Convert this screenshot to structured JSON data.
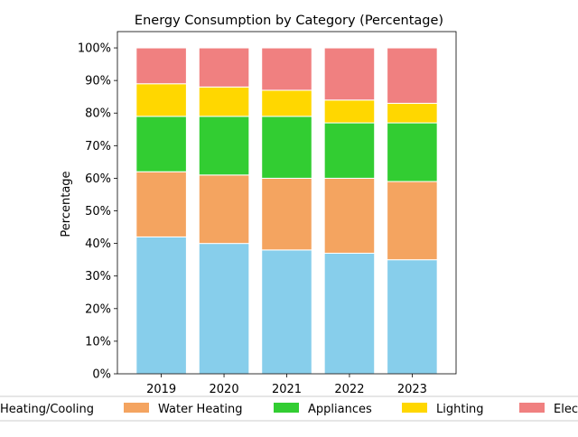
{
  "chart_data": {
    "type": "bar",
    "stacked": true,
    "title": "Energy Consumption by Category (Percentage)",
    "xlabel": "",
    "ylabel": "Percentage",
    "ylim": [
      0,
      105
    ],
    "categories": [
      "2019",
      "2020",
      "2021",
      "2022",
      "2023"
    ],
    "yticks": [
      "0%",
      "10%",
      "20%",
      "30%",
      "40%",
      "50%",
      "60%",
      "70%",
      "80%",
      "90%",
      "100%"
    ],
    "grid": false,
    "legend_position": "bottom",
    "series": [
      {
        "name": "Heating/Cooling",
        "color": "#87ceeb",
        "values": [
          42,
          40,
          38,
          37,
          35
        ]
      },
      {
        "name": "Water Heating",
        "color": "#f4a460",
        "values": [
          20,
          21,
          22,
          23,
          24
        ]
      },
      {
        "name": "Appliances",
        "color": "#32cd32",
        "values": [
          17,
          18,
          19,
          17,
          18
        ]
      },
      {
        "name": "Lighting",
        "color": "#ffd700",
        "values": [
          10,
          9,
          8,
          7,
          6
        ]
      },
      {
        "name": "Electronics",
        "color": "#f08080",
        "values": [
          11,
          12,
          13,
          16,
          17
        ]
      }
    ]
  }
}
